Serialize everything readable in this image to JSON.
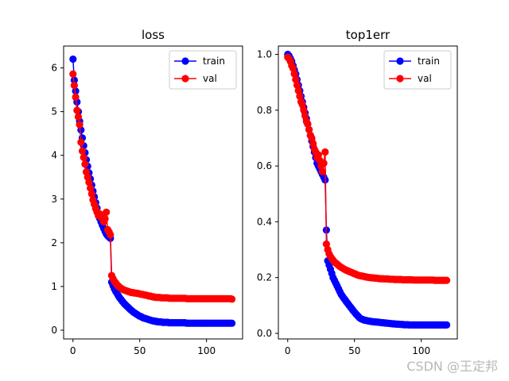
{
  "watermark": "CSDN @王定邦",
  "chart_data": [
    {
      "type": "line",
      "title": "loss",
      "xlabel": "",
      "ylabel": "",
      "xlim": [
        -7,
        127
      ],
      "ylim": [
        -0.2,
        6.5
      ],
      "xticks": [
        0,
        50,
        100
      ],
      "yticks": [
        0,
        1,
        2,
        3,
        4,
        5,
        6
      ],
      "legend": "top-right",
      "x": [
        0,
        1,
        2,
        3,
        4,
        5,
        6,
        7,
        8,
        9,
        10,
        11,
        12,
        13,
        14,
        15,
        16,
        17,
        18,
        19,
        20,
        21,
        22,
        23,
        24,
        25,
        26,
        27,
        28,
        29,
        30,
        31,
        32,
        33,
        34,
        35,
        36,
        37,
        38,
        39,
        40,
        41,
        42,
        43,
        44,
        45,
        46,
        47,
        48,
        49,
        50,
        51,
        52,
        53,
        54,
        55,
        56,
        57,
        58,
        59,
        60,
        61,
        62,
        63,
        64,
        65,
        66,
        67,
        68,
        69,
        70,
        71,
        72,
        73,
        74,
        75,
        76,
        77,
        78,
        79,
        80,
        81,
        82,
        83,
        84,
        85,
        86,
        87,
        88,
        89,
        90,
        91,
        92,
        93,
        94,
        95,
        96,
        97,
        98,
        99,
        100,
        101,
        102,
        103,
        104,
        105,
        106,
        107,
        108,
        109,
        110,
        111,
        112,
        113,
        114,
        115,
        116,
        117,
        118,
        119
      ],
      "series": [
        {
          "name": "train",
          "color": "#0000ff",
          "values": [
            6.2,
            5.72,
            5.47,
            5.22,
            5.0,
            4.78,
            4.58,
            4.4,
            4.22,
            4.06,
            3.9,
            3.75,
            3.6,
            3.46,
            3.32,
            3.18,
            3.05,
            2.92,
            2.79,
            2.66,
            2.56,
            2.48,
            2.4,
            2.33,
            2.26,
            2.2,
            2.16,
            2.13,
            2.1,
            1.1,
            1.02,
            0.95,
            0.89,
            0.84,
            0.79,
            0.74,
            0.7,
            0.66,
            0.62,
            0.59,
            0.56,
            0.53,
            0.5,
            0.47,
            0.45,
            0.42,
            0.4,
            0.38,
            0.36,
            0.34,
            0.32,
            0.31,
            0.29,
            0.28,
            0.27,
            0.26,
            0.25,
            0.24,
            0.23,
            0.22,
            0.21,
            0.21,
            0.2,
            0.2,
            0.19,
            0.19,
            0.19,
            0.18,
            0.18,
            0.18,
            0.18,
            0.18,
            0.17,
            0.17,
            0.17,
            0.17,
            0.17,
            0.17,
            0.17,
            0.17,
            0.17,
            0.17,
            0.17,
            0.17,
            0.17,
            0.16,
            0.16,
            0.16,
            0.16,
            0.16,
            0.16,
            0.16,
            0.16,
            0.16,
            0.16,
            0.16,
            0.16,
            0.16,
            0.16,
            0.16,
            0.16,
            0.16,
            0.16,
            0.16,
            0.16,
            0.16,
            0.16,
            0.16,
            0.16,
            0.16,
            0.16,
            0.16,
            0.16,
            0.16,
            0.16,
            0.16,
            0.16,
            0.16,
            0.16,
            0.16
          ]
        },
        {
          "name": "val",
          "color": "#ff0000",
          "values": [
            5.86,
            5.6,
            5.33,
            5.03,
            4.88,
            4.7,
            4.3,
            4.1,
            3.95,
            3.8,
            3.62,
            3.5,
            3.38,
            3.25,
            3.12,
            2.98,
            2.88,
            2.78,
            2.7,
            2.62,
            2.66,
            2.58,
            2.63,
            2.48,
            2.55,
            2.7,
            2.3,
            2.25,
            2.18,
            1.25,
            1.18,
            1.12,
            1.08,
            1.04,
            1.01,
            0.98,
            0.96,
            0.94,
            0.92,
            0.91,
            0.9,
            0.89,
            0.88,
            0.87,
            0.86,
            0.86,
            0.85,
            0.85,
            0.84,
            0.84,
            0.83,
            0.82,
            0.82,
            0.81,
            0.8,
            0.8,
            0.79,
            0.78,
            0.78,
            0.77,
            0.76,
            0.76,
            0.75,
            0.75,
            0.75,
            0.75,
            0.74,
            0.74,
            0.74,
            0.74,
            0.74,
            0.74,
            0.73,
            0.73,
            0.73,
            0.73,
            0.73,
            0.73,
            0.73,
            0.73,
            0.73,
            0.73,
            0.73,
            0.73,
            0.73,
            0.72,
            0.72,
            0.72,
            0.72,
            0.72,
            0.72,
            0.72,
            0.72,
            0.72,
            0.72,
            0.72,
            0.72,
            0.72,
            0.72,
            0.72,
            0.72,
            0.72,
            0.72,
            0.72,
            0.72,
            0.72,
            0.72,
            0.72,
            0.72,
            0.72,
            0.72,
            0.72,
            0.72,
            0.72,
            0.72,
            0.72,
            0.72,
            0.72,
            0.72,
            0.71
          ]
        }
      ]
    },
    {
      "type": "line",
      "title": "top1err",
      "xlabel": "",
      "ylabel": "",
      "xlim": [
        -7,
        127
      ],
      "ylim": [
        -0.02,
        1.03
      ],
      "xticks": [
        0,
        50,
        100
      ],
      "yticks": [
        0.0,
        0.2,
        0.4,
        0.6,
        0.8,
        1.0
      ],
      "ytick_labels": [
        "0.0",
        "0.2",
        "0.4",
        "0.6",
        "0.8",
        "1.0"
      ],
      "legend": "top-right",
      "x": [
        0,
        1,
        2,
        3,
        4,
        5,
        6,
        7,
        8,
        9,
        10,
        11,
        12,
        13,
        14,
        15,
        16,
        17,
        18,
        19,
        20,
        21,
        22,
        23,
        24,
        25,
        26,
        27,
        28,
        29,
        30,
        31,
        32,
        33,
        34,
        35,
        36,
        37,
        38,
        39,
        40,
        41,
        42,
        43,
        44,
        45,
        46,
        47,
        48,
        49,
        50,
        51,
        52,
        53,
        54,
        55,
        56,
        57,
        58,
        59,
        60,
        61,
        62,
        63,
        64,
        65,
        66,
        67,
        68,
        69,
        70,
        71,
        72,
        73,
        74,
        75,
        76,
        77,
        78,
        79,
        80,
        81,
        82,
        83,
        84,
        85,
        86,
        87,
        88,
        89,
        90,
        91,
        92,
        93,
        94,
        95,
        96,
        97,
        98,
        99,
        100,
        101,
        102,
        103,
        104,
        105,
        106,
        107,
        108,
        109,
        110,
        111,
        112,
        113,
        114,
        115,
        116,
        117,
        118,
        119
      ],
      "series": [
        {
          "name": "train",
          "color": "#0000ff",
          "values": [
            1.0,
            0.995,
            0.985,
            0.975,
            0.96,
            0.945,
            0.93,
            0.91,
            0.89,
            0.87,
            0.85,
            0.83,
            0.81,
            0.79,
            0.77,
            0.75,
            0.73,
            0.71,
            0.69,
            0.67,
            0.65,
            0.63,
            0.61,
            0.6,
            0.59,
            0.58,
            0.57,
            0.56,
            0.55,
            0.37,
            0.26,
            0.245,
            0.23,
            0.215,
            0.2,
            0.19,
            0.18,
            0.17,
            0.16,
            0.15,
            0.14,
            0.133,
            0.126,
            0.12,
            0.113,
            0.107,
            0.1,
            0.094,
            0.088,
            0.082,
            0.076,
            0.07,
            0.065,
            0.06,
            0.055,
            0.052,
            0.05,
            0.048,
            0.047,
            0.046,
            0.045,
            0.044,
            0.043,
            0.042,
            0.042,
            0.041,
            0.041,
            0.04,
            0.04,
            0.039,
            0.039,
            0.038,
            0.038,
            0.037,
            0.037,
            0.036,
            0.036,
            0.035,
            0.035,
            0.034,
            0.034,
            0.033,
            0.033,
            0.033,
            0.032,
            0.032,
            0.032,
            0.031,
            0.031,
            0.031,
            0.031,
            0.03,
            0.03,
            0.03,
            0.03,
            0.03,
            0.03,
            0.03,
            0.03,
            0.03,
            0.03,
            0.03,
            0.03,
            0.03,
            0.03,
            0.03,
            0.03,
            0.03,
            0.03,
            0.03,
            0.03,
            0.03,
            0.03,
            0.03,
            0.03,
            0.03,
            0.03,
            0.03,
            0.03,
            0.03
          ]
        },
        {
          "name": "val",
          "color": "#ff0000",
          "values": [
            0.99,
            0.985,
            0.975,
            0.96,
            0.95,
            0.93,
            0.91,
            0.89,
            0.87,
            0.85,
            0.83,
            0.82,
            0.8,
            0.78,
            0.76,
            0.75,
            0.73,
            0.71,
            0.7,
            0.68,
            0.66,
            0.65,
            0.63,
            0.64,
            0.62,
            0.6,
            0.58,
            0.61,
            0.65,
            0.32,
            0.3,
            0.285,
            0.275,
            0.268,
            0.262,
            0.256,
            0.252,
            0.248,
            0.244,
            0.24,
            0.237,
            0.234,
            0.231,
            0.228,
            0.226,
            0.224,
            0.222,
            0.22,
            0.218,
            0.216,
            0.214,
            0.212,
            0.21,
            0.208,
            0.207,
            0.206,
            0.205,
            0.204,
            0.203,
            0.202,
            0.201,
            0.2,
            0.2,
            0.199,
            0.199,
            0.198,
            0.198,
            0.197,
            0.197,
            0.196,
            0.196,
            0.196,
            0.195,
            0.195,
            0.195,
            0.195,
            0.194,
            0.194,
            0.194,
            0.194,
            0.193,
            0.193,
            0.193,
            0.193,
            0.193,
            0.193,
            0.192,
            0.192,
            0.192,
            0.192,
            0.192,
            0.192,
            0.192,
            0.192,
            0.191,
            0.191,
            0.191,
            0.191,
            0.191,
            0.191,
            0.191,
            0.191,
            0.191,
            0.191,
            0.191,
            0.191,
            0.191,
            0.191,
            0.191,
            0.191,
            0.19,
            0.19,
            0.19,
            0.19,
            0.19,
            0.19,
            0.19,
            0.19,
            0.19,
            0.19
          ]
        }
      ]
    }
  ]
}
